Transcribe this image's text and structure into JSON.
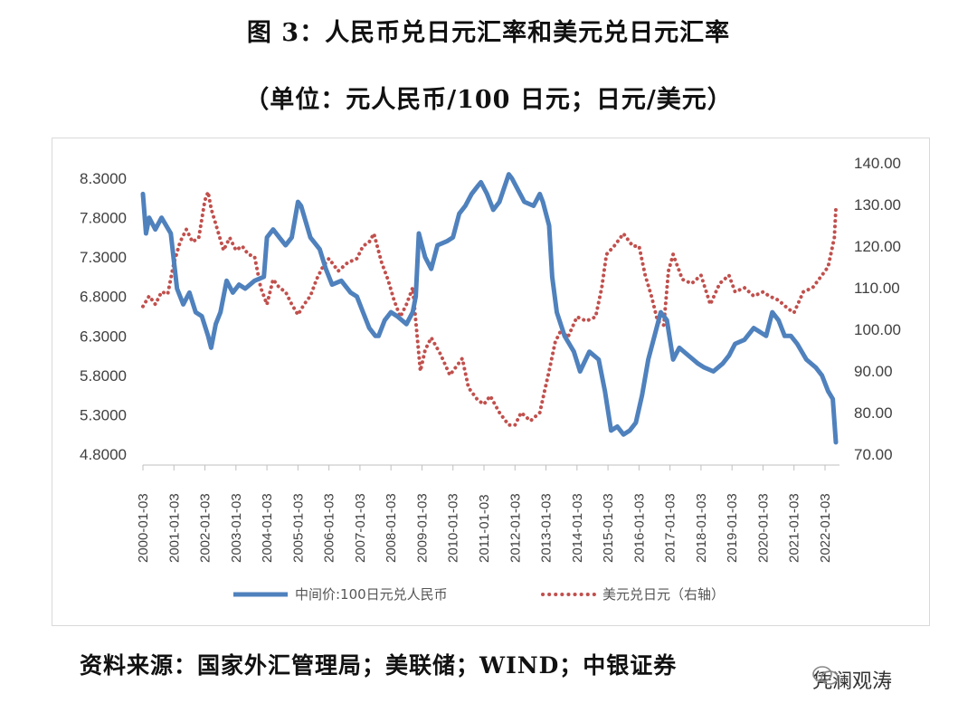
{
  "title_line1": "图 3：人民币兑日元汇率和美元兑日元汇率",
  "title_line2": "（单位：元人民币/100 日元；日元/美元）",
  "source": "资料来源：国家外汇管理局；美联储；WIND；中银证券",
  "watermark": "凭澜观涛",
  "chart_data": {
    "type": "line",
    "x_tick_labels": [
      "2000-01-03",
      "2001-01-03",
      "2002-01-03",
      "2003-01-03",
      "2004-01-03",
      "2005-01-03",
      "2006-01-03",
      "2007-01-03",
      "2008-01-03",
      "2009-01-03",
      "2010-01-03",
      "2011-01-03",
      "2012-01-03",
      "2013-01-03",
      "2014-01-03",
      "2015-01-03",
      "2016-01-03",
      "2017-01-03",
      "2018-01-03",
      "2019-01-03",
      "2020-01-03",
      "2021-01-03",
      "2022-01-03"
    ],
    "y_left": {
      "min": 4.8,
      "max": 8.3,
      "ticks": [
        "8.3000",
        "7.8000",
        "7.3000",
        "6.8000",
        "6.3000",
        "5.8000",
        "5.3000",
        "4.8000"
      ]
    },
    "y_right": {
      "min": 70,
      "max": 140,
      "ticks": [
        "140.00",
        "130.00",
        "120.00",
        "110.00",
        "100.00",
        "90.00",
        "80.00",
        "70.00"
      ]
    },
    "legend_position": "bottom",
    "series": [
      {
        "name": "中间价:100日元兑人民币",
        "axis": "left",
        "style": "solid",
        "color": "#4f81bd",
        "x": [
          2000.0,
          2000.1,
          2000.2,
          2000.4,
          2000.6,
          2000.9,
          2001.1,
          2001.3,
          2001.5,
          2001.7,
          2001.9,
          2002.1,
          2002.2,
          2002.35,
          2002.5,
          2002.7,
          2002.9,
          2003.1,
          2003.3,
          2003.6,
          2003.9,
          2004.0,
          2004.2,
          2004.4,
          2004.6,
          2004.8,
          2005.0,
          2005.1,
          2005.4,
          2005.7,
          2005.9,
          2006.1,
          2006.4,
          2006.7,
          2006.9,
          2007.1,
          2007.3,
          2007.5,
          2007.6,
          2007.8,
          2008.0,
          2008.2,
          2008.5,
          2008.7,
          2008.8,
          2008.9,
          2009.1,
          2009.3,
          2009.5,
          2009.8,
          2010.0,
          2010.2,
          2010.4,
          2010.6,
          2010.8,
          2010.9,
          2011.1,
          2011.3,
          2011.5,
          2011.8,
          2011.9,
          2012.1,
          2012.3,
          2012.6,
          2012.8,
          2012.9,
          2013.1,
          2013.2,
          2013.35,
          2013.6,
          2013.9,
          2014.1,
          2014.4,
          2014.7,
          2014.9,
          2015.1,
          2015.3,
          2015.5,
          2015.7,
          2015.9,
          2016.1,
          2016.3,
          2016.5,
          2016.7,
          2016.9,
          2017.1,
          2017.3,
          2017.6,
          2017.9,
          2018.1,
          2018.4,
          2018.7,
          2018.9,
          2019.1,
          2019.4,
          2019.7,
          2019.9,
          2020.1,
          2020.3,
          2020.5,
          2020.7,
          2020.9,
          2021.1,
          2021.4,
          2021.7,
          2021.9,
          2022.1,
          2022.25,
          2022.35
        ],
        "y": [
          8.1,
          7.6,
          7.8,
          7.65,
          7.8,
          7.6,
          6.9,
          6.7,
          6.85,
          6.6,
          6.55,
          6.3,
          6.15,
          6.45,
          6.6,
          7.0,
          6.85,
          6.95,
          6.9,
          7.0,
          7.05,
          7.55,
          7.65,
          7.55,
          7.45,
          7.55,
          8.0,
          7.95,
          7.55,
          7.4,
          7.15,
          6.95,
          7.0,
          6.85,
          6.8,
          6.6,
          6.4,
          6.3,
          6.3,
          6.5,
          6.6,
          6.55,
          6.45,
          6.6,
          6.8,
          7.6,
          7.3,
          7.15,
          7.45,
          7.5,
          7.55,
          7.85,
          7.95,
          8.1,
          8.2,
          8.25,
          8.1,
          7.9,
          8.0,
          8.35,
          8.3,
          8.15,
          8.0,
          7.95,
          8.1,
          8.0,
          7.7,
          7.05,
          6.6,
          6.3,
          6.1,
          5.85,
          6.1,
          6.0,
          5.6,
          5.1,
          5.15,
          5.05,
          5.1,
          5.2,
          5.55,
          6.0,
          6.3,
          6.6,
          6.5,
          6.0,
          6.15,
          6.05,
          5.95,
          5.9,
          5.85,
          5.95,
          6.05,
          6.2,
          6.25,
          6.4,
          6.35,
          6.3,
          6.6,
          6.5,
          6.3,
          6.3,
          6.2,
          6.0,
          5.9,
          5.8,
          5.6,
          5.5,
          4.95
        ]
      },
      {
        "name": "美元兑日元（右轴）",
        "axis": "right",
        "style": "dotted",
        "color": "#c0504d",
        "x": [
          2000.0,
          2000.2,
          2000.4,
          2000.6,
          2000.8,
          2001.0,
          2001.2,
          2001.4,
          2001.6,
          2001.8,
          2002.0,
          2002.1,
          2002.2,
          2002.4,
          2002.6,
          2002.8,
          2003.0,
          2003.2,
          2003.4,
          2003.6,
          2003.8,
          2004.0,
          2004.2,
          2004.4,
          2004.6,
          2004.8,
          2005.0,
          2005.2,
          2005.4,
          2005.6,
          2005.8,
          2006.0,
          2006.3,
          2006.6,
          2006.9,
          2007.1,
          2007.3,
          2007.45,
          2007.7,
          2007.9,
          2008.1,
          2008.3,
          2008.5,
          2008.7,
          2008.8,
          2008.95,
          2009.1,
          2009.3,
          2009.6,
          2009.9,
          2010.1,
          2010.3,
          2010.5,
          2010.8,
          2011.0,
          2011.2,
          2011.5,
          2011.8,
          2012.0,
          2012.2,
          2012.5,
          2012.8,
          2012.95,
          2013.1,
          2013.3,
          2013.5,
          2013.7,
          2014.0,
          2014.3,
          2014.6,
          2014.8,
          2014.95,
          2015.2,
          2015.5,
          2015.8,
          2016.0,
          2016.2,
          2016.4,
          2016.6,
          2016.8,
          2016.95,
          2017.1,
          2017.4,
          2017.7,
          2018.0,
          2018.3,
          2018.6,
          2018.9,
          2019.1,
          2019.4,
          2019.7,
          2020.0,
          2020.2,
          2020.5,
          2020.8,
          2021.0,
          2021.3,
          2021.6,
          2021.9,
          2022.1,
          2022.3,
          2022.35
        ],
        "y": [
          105.5,
          108.0,
          106.0,
          109.0,
          108.5,
          116.0,
          121.0,
          124.0,
          121.0,
          122.0,
          131.0,
          133.0,
          129.0,
          124.0,
          119.0,
          122.0,
          119.0,
          120.0,
          118.0,
          117.5,
          110.0,
          106.0,
          112.0,
          110.0,
          109.0,
          106.0,
          103.5,
          106.0,
          108.0,
          112.0,
          115.0,
          117.0,
          114.0,
          116.0,
          117.0,
          120.0,
          121.0,
          123.0,
          116.0,
          112.0,
          107.0,
          103.0,
          106.0,
          110.0,
          102.0,
          90.0,
          95.0,
          98.0,
          94.0,
          89.0,
          91.0,
          93.0,
          86.0,
          83.0,
          82.0,
          84.0,
          80.0,
          77.0,
          77.0,
          80.0,
          78.0,
          80.0,
          85.0,
          90.0,
          97.0,
          100.0,
          98.0,
          103.0,
          102.0,
          103.0,
          110.0,
          118.0,
          120.0,
          123.0,
          120.0,
          120.0,
          113.0,
          108.0,
          102.0,
          101.0,
          114.0,
          118.0,
          112.0,
          111.0,
          113.0,
          106.0,
          111.0,
          113.0,
          109.0,
          110.0,
          108.0,
          109.0,
          108.0,
          107.0,
          105.0,
          104.0,
          109.0,
          110.0,
          113.0,
          115.0,
          122.0,
          129.0
        ]
      }
    ]
  }
}
